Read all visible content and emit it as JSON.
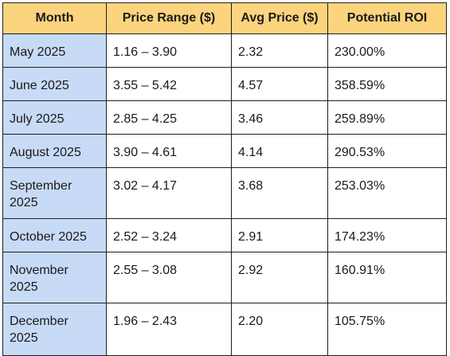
{
  "table": {
    "headers": {
      "month": "Month",
      "price_range": "Price Range ($)",
      "avg_price": "Avg Price ($)",
      "potential_roi": "Potential ROI"
    },
    "rows": [
      {
        "month": "May 2025",
        "price_range": "1.16 – 3.90",
        "avg_price": "2.32",
        "potential_roi": "230.00%"
      },
      {
        "month": "June 2025",
        "price_range": "3.55 – 5.42",
        "avg_price": "4.57",
        "potential_roi": "358.59%"
      },
      {
        "month": "July 2025",
        "price_range": "2.85 – 4.25",
        "avg_price": "3.46",
        "potential_roi": "259.89%"
      },
      {
        "month": "August 2025",
        "price_range": "3.90 – 4.61",
        "avg_price": "4.14",
        "potential_roi": "290.53%"
      },
      {
        "month": "September 2025",
        "price_range": "3.02 – 4.17",
        "avg_price": "3.68",
        "potential_roi": "253.03%"
      },
      {
        "month": "October 2025",
        "price_range": "2.52 – 3.24",
        "avg_price": "2.91",
        "potential_roi": "174.23%"
      },
      {
        "month": "November 2025",
        "price_range": "2.55 – 3.08",
        "avg_price": "2.92",
        "potential_roi": "160.91%"
      },
      {
        "month": "December 2025",
        "price_range": "1.96 – 2.43",
        "avg_price": "2.20",
        "potential_roi": "105.75%"
      }
    ]
  },
  "colors": {
    "header_background": "#fcd47e",
    "month_column_background": "#c7daf6",
    "border": "#1f1f1f"
  }
}
